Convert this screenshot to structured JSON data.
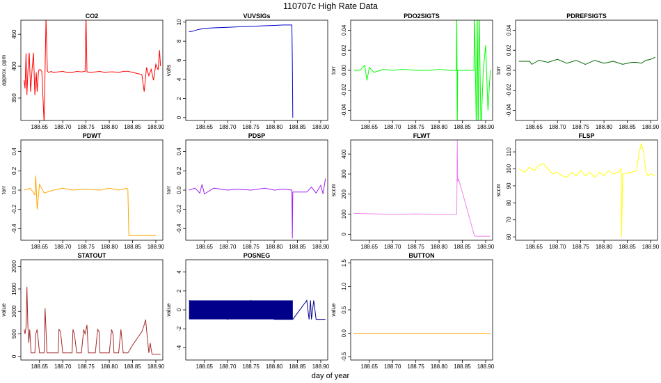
{
  "page": {
    "title": "110707c   High Rate Data",
    "xlabel": "day of year"
  },
  "chart_data": [
    {
      "type": "line",
      "title": "CO2",
      "ylabel": "approx. ppm",
      "color": "#ff0000",
      "xlim": [
        188.61,
        188.915
      ],
      "ylim": [
        315,
        472
      ],
      "xticks": [
        188.65,
        188.7,
        188.75,
        188.8,
        188.85,
        188.9
      ],
      "yticks": [
        350,
        400,
        450
      ],
      "series": [
        {
          "x": [
            188.617,
            188.619,
            188.621,
            188.623,
            188.625,
            188.628,
            188.631,
            188.634,
            188.637,
            188.64,
            188.643,
            188.645,
            188.648,
            188.651,
            188.655,
            188.66,
            188.662,
            188.664,
            188.667,
            188.67,
            188.675,
            188.68,
            188.69,
            188.7,
            188.71,
            188.72,
            188.73,
            188.74,
            188.748,
            188.75,
            188.752,
            188.76,
            188.77,
            188.78,
            188.79,
            188.8,
            188.81,
            188.82,
            188.83,
            188.84,
            188.87,
            188.875,
            188.88,
            188.885,
            188.89,
            188.895,
            188.9,
            188.905,
            188.908,
            188.91
          ],
          "y": [
            378,
            365,
            420,
            355,
            390,
            421,
            360,
            395,
            421,
            355,
            390,
            360,
            393,
            395,
            392,
            310,
            395,
            475,
            392,
            390,
            392,
            390,
            391,
            392,
            390,
            390,
            392,
            391,
            392,
            480,
            391,
            390,
            391,
            392,
            390,
            391,
            391,
            390,
            392,
            392,
            387,
            360,
            398,
            385,
            395,
            378,
            403,
            394,
            425,
            400
          ]
        }
      ]
    },
    {
      "type": "line",
      "title": "VUVSIGs",
      "ylabel": "volts",
      "color": "#0000cd",
      "xlim": [
        188.61,
        188.915
      ],
      "ylim": [
        -0.3,
        10.2
      ],
      "xticks": [
        188.65,
        188.7,
        188.75,
        188.8,
        188.85,
        188.9
      ],
      "yticks": [
        0,
        2,
        4,
        6,
        8,
        10
      ],
      "series": [
        {
          "x": [
            188.617,
            188.625,
            188.635,
            188.65,
            188.67,
            188.7,
            188.72,
            188.75,
            188.77,
            188.8,
            188.82,
            188.838,
            188.839,
            188.84
          ],
          "y": [
            9.0,
            9.05,
            9.2,
            9.35,
            9.4,
            9.45,
            9.5,
            9.55,
            9.6,
            9.65,
            9.7,
            9.7,
            5.7,
            0.0
          ]
        }
      ]
    },
    {
      "type": "line",
      "title": "PDO2SIGTS",
      "ylabel": "torr",
      "color": "#00ff00",
      "xlim": [
        188.61,
        188.915
      ],
      "ylim": [
        -0.05,
        0.05
      ],
      "xticks": [
        188.65,
        188.7,
        188.75,
        188.8,
        188.85,
        188.9
      ],
      "yticks": [
        -0.04,
        -0.02,
        0.0,
        0.02,
        0.04
      ],
      "series": [
        {
          "x": [
            188.617,
            188.63,
            188.64,
            188.645,
            188.65,
            188.66,
            188.68,
            188.7,
            188.72,
            188.75,
            188.78,
            188.8,
            188.82,
            188.837,
            188.838,
            188.839,
            188.84,
            188.86,
            188.875,
            188.876,
            188.88,
            188.882,
            188.884,
            188.886,
            188.89,
            188.895,
            188.9,
            188.905,
            188.91
          ],
          "y": [
            0.0,
            0.0,
            0.005,
            -0.01,
            0.003,
            -0.002,
            0.001,
            0.0,
            0.001,
            0.0,
            0.0,
            0.001,
            0.0,
            0.0,
            0.06,
            -0.06,
            0.0,
            0.0,
            0.0,
            0.06,
            -0.06,
            0.06,
            -0.06,
            0.06,
            -0.06,
            0.0,
            0.025,
            -0.04,
            0.0
          ]
        }
      ]
    },
    {
      "type": "line",
      "title": "PDREFSIGTS",
      "ylabel": "torr",
      "color": "#006400",
      "xlim": [
        188.61,
        188.915
      ],
      "ylim": [
        -0.05,
        0.05
      ],
      "xticks": [
        188.65,
        188.7,
        188.75,
        188.8,
        188.85,
        188.9
      ],
      "yticks": [
        -0.04,
        -0.02,
        0.0,
        0.02,
        0.04
      ],
      "series": [
        {
          "x": [
            188.617,
            188.64,
            188.645,
            188.66,
            188.68,
            188.7,
            188.72,
            188.74,
            188.76,
            188.78,
            188.8,
            188.82,
            188.84,
            188.86,
            188.87,
            188.88,
            188.89,
            188.9,
            188.91
          ],
          "y": [
            0.009,
            0.009,
            0.006,
            0.01,
            0.008,
            0.011,
            0.007,
            0.01,
            0.006,
            0.01,
            0.007,
            0.009,
            0.006,
            0.008,
            0.008,
            0.007,
            0.01,
            0.011,
            0.013
          ]
        }
      ]
    },
    {
      "type": "line",
      "title": "PDWT",
      "ylabel": "torr",
      "color": "#ffa500",
      "xlim": [
        188.61,
        188.915
      ],
      "ylim": [
        -0.52,
        0.52
      ],
      "xticks": [
        188.65,
        188.7,
        188.75,
        188.8,
        188.85,
        188.9
      ],
      "yticks": [
        -0.4,
        -0.2,
        0.0,
        0.2,
        0.4
      ],
      "series": [
        {
          "x": [
            188.617,
            188.63,
            188.64,
            188.642,
            188.645,
            188.65,
            188.66,
            188.68,
            188.7,
            188.72,
            188.75,
            188.78,
            188.8,
            188.82,
            188.838,
            188.84,
            188.842,
            188.86,
            188.9
          ],
          "y": [
            0.0,
            0.02,
            -0.05,
            0.15,
            -0.2,
            0.06,
            -0.03,
            0.0,
            0.02,
            0.0,
            0.01,
            0.0,
            0.02,
            0.0,
            0.02,
            0.0,
            -0.47,
            -0.47,
            -0.47
          ]
        }
      ]
    },
    {
      "type": "line",
      "title": "PDSP",
      "ylabel": "torr",
      "color": "#a020f0",
      "xlim": [
        188.61,
        188.915
      ],
      "ylim": [
        -0.52,
        0.52
      ],
      "xticks": [
        188.65,
        188.7,
        188.75,
        188.8,
        188.85,
        188.9
      ],
      "yticks": [
        -0.4,
        -0.2,
        0.0,
        0.2,
        0.4
      ],
      "series": [
        {
          "x": [
            188.617,
            188.63,
            188.64,
            188.645,
            188.65,
            188.67,
            188.7,
            188.72,
            188.75,
            188.78,
            188.8,
            188.82,
            188.838,
            188.839,
            188.84,
            188.85,
            188.87,
            188.88,
            188.89,
            188.9,
            188.905,
            188.91
          ],
          "y": [
            0.0,
            0.02,
            -0.03,
            0.06,
            -0.04,
            0.02,
            0.0,
            0.01,
            0.0,
            0.02,
            0.0,
            0.01,
            0.0,
            -0.5,
            -0.02,
            -0.02,
            -0.02,
            0.03,
            -0.03,
            0.05,
            -0.04,
            0.12
          ]
        }
      ]
    },
    {
      "type": "line",
      "title": "FLWT",
      "ylabel": "sccm",
      "color": "#ee82ee",
      "xlim": [
        188.61,
        188.915
      ],
      "ylim": [
        -30,
        470
      ],
      "xticks": [
        188.65,
        188.7,
        188.75,
        188.8,
        188.85,
        188.9
      ],
      "yticks": [
        0,
        100,
        200,
        300,
        400
      ],
      "series": [
        {
          "x": [
            188.617,
            188.65,
            188.7,
            188.75,
            188.8,
            188.838,
            188.839,
            188.84,
            188.842,
            188.876,
            188.88,
            188.91
          ],
          "y": [
            104,
            102,
            99,
            101,
            99,
            100,
            470,
            262,
            275,
            -8,
            -10,
            -10
          ]
        }
      ]
    },
    {
      "type": "line",
      "title": "FLSP",
      "ylabel": "sccm",
      "color": "#ffff00",
      "xlim": [
        188.61,
        188.915
      ],
      "ylim": [
        58,
        117
      ],
      "xticks": [
        188.65,
        188.7,
        188.75,
        188.8,
        188.85,
        188.9
      ],
      "yticks": [
        60,
        70,
        80,
        90,
        100,
        110
      ],
      "series": [
        {
          "x": [
            188.617,
            188.63,
            188.64,
            188.65,
            188.66,
            188.67,
            188.68,
            188.69,
            188.7,
            188.71,
            188.72,
            188.73,
            188.74,
            188.75,
            188.76,
            188.77,
            188.78,
            188.79,
            188.8,
            188.81,
            188.82,
            188.83,
            188.837,
            188.838,
            188.84,
            188.86,
            188.87,
            188.875,
            188.88,
            188.885,
            188.89,
            188.895,
            188.9,
            188.91
          ],
          "y": [
            100,
            98,
            101,
            99,
            102,
            103,
            100,
            97,
            98,
            96,
            95,
            98,
            96,
            99,
            96,
            98,
            95,
            98,
            96,
            99,
            97,
            98,
            100,
            60,
            97,
            98,
            99,
            108,
            115,
            110,
            98,
            96,
            97,
            96
          ]
        }
      ]
    },
    {
      "type": "line",
      "title": "STATOUT",
      "ylabel": "value",
      "color": "#a52a2a",
      "xlim": [
        188.61,
        188.915
      ],
      "ylim": [
        -80,
        2150
      ],
      "xticks": [
        188.65,
        188.7,
        188.75,
        188.8,
        188.85,
        188.9
      ],
      "yticks": [
        0,
        500,
        1000,
        1500,
        2000
      ],
      "series": [
        {
          "x": [
            188.617,
            188.619,
            188.621,
            188.623,
            188.625,
            188.627,
            188.629,
            188.632,
            188.64,
            188.642,
            188.645,
            188.65,
            188.66,
            188.662,
            188.664,
            188.666,
            188.672,
            188.69,
            188.692,
            188.695,
            188.7,
            188.71,
            188.72,
            188.722,
            188.725,
            188.73,
            188.74,
            188.745,
            188.748,
            188.752,
            188.755,
            188.76,
            188.77,
            188.775,
            188.778,
            188.78,
            188.79,
            188.8,
            188.805,
            188.808,
            188.81,
            188.815,
            188.82,
            188.825,
            188.83,
            188.835,
            188.84,
            188.85,
            188.86,
            188.87,
            188.875,
            188.878,
            188.88,
            188.885,
            188.888,
            188.89,
            188.892,
            188.9,
            188.91
          ],
          "y": [
            600,
            500,
            650,
            1550,
            700,
            300,
            600,
            80,
            80,
            500,
            600,
            80,
            80,
            1070,
            600,
            80,
            80,
            80,
            600,
            560,
            80,
            80,
            80,
            600,
            500,
            80,
            80,
            600,
            500,
            700,
            80,
            80,
            80,
            600,
            550,
            80,
            80,
            80,
            600,
            500,
            80,
            80,
            80,
            600,
            80,
            80,
            80,
            250,
            400,
            550,
            700,
            820,
            600,
            80,
            300,
            150,
            50,
            50,
            50
          ]
        }
      ]
    },
    {
      "type": "line",
      "title": "POSNEG",
      "ylabel": "value",
      "color": "#00008b",
      "xlim": [
        188.61,
        188.915
      ],
      "ylim": [
        -5.3,
        5.3
      ],
      "xticks": [
        188.65,
        188.7,
        188.75,
        188.8,
        188.85,
        188.9
      ],
      "yticks": [
        -4,
        -2,
        0,
        2,
        4
      ],
      "series": [
        {
          "x": [
            188.617,
            188.7,
            188.75,
            188.8,
            188.84,
            188.87,
            188.875,
            188.878,
            188.88,
            188.885,
            188.89,
            188.91
          ],
          "y": [
            1,
            -1,
            1,
            -1,
            -1,
            1,
            -1,
            1,
            -1,
            1,
            -1,
            -1
          ]
        }
      ],
      "fill_band": {
        "x0": 188.617,
        "x1": 188.84,
        "y0": -1,
        "y1": 1
      }
    },
    {
      "type": "line",
      "title": "BUTTON",
      "ylabel": "value",
      "color": "#ffa500",
      "xlim": [
        188.61,
        188.915
      ],
      "ylim": [
        -0.57,
        1.57
      ],
      "xticks": [
        188.65,
        188.7,
        188.75,
        188.8,
        188.85,
        188.9
      ],
      "yticks": [
        -0.5,
        0.0,
        0.5,
        1.0,
        1.5
      ],
      "series": [
        {
          "x": [
            188.617,
            188.91
          ],
          "y": [
            0,
            0
          ]
        }
      ]
    }
  ]
}
